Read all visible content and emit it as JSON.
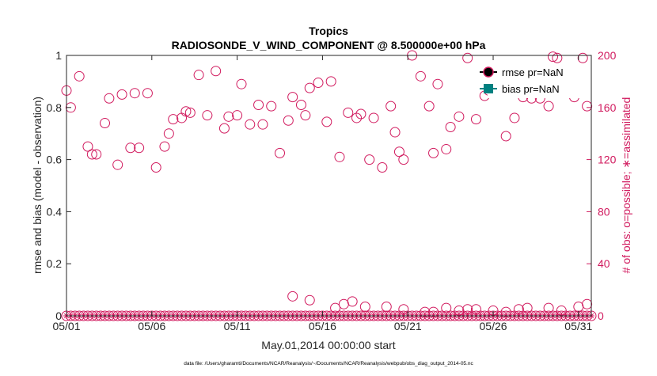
{
  "chart_data": {
    "type": "scatter",
    "title_line1": "Tropics",
    "title_line2": "RADIOSONDE_V_WIND_COMPONENT @ 8.500000e+00 hPa",
    "xlabel": "May.01,2014 00:00:00 start",
    "ylabel_left": "rmse and bias (model - observation)",
    "ylabel_right": "# of obs: o=possible; ∗=assimilated",
    "footnote": "data file: /Users/gharamti/Documents/NCAR/Reanalysis/~/Documents/NCAR/Reanalysis/webpub/obs_diag_output_2014-05.nc",
    "xlim": [
      1,
      31.75
    ],
    "ylim_left": [
      0,
      1
    ],
    "ylim_right": [
      0,
      200
    ],
    "x_ticks": [
      1,
      6,
      11,
      16,
      21,
      26,
      31
    ],
    "x_tick_labels": [
      "05/01",
      "05/06",
      "05/11",
      "05/16",
      "05/21",
      "05/26",
      "05/31"
    ],
    "y_left_ticks": [
      0,
      0.2,
      0.4,
      0.6,
      0.8,
      1
    ],
    "y_left_tick_labels": [
      "0",
      "0.2",
      "0.4",
      "0.6",
      "0.8",
      "1"
    ],
    "y_right_ticks": [
      0,
      40,
      80,
      120,
      160,
      200
    ],
    "y_right_tick_labels": [
      "0",
      "40",
      "80",
      "120",
      "160",
      "200"
    ],
    "legend": {
      "position": "top-right",
      "entries": [
        {
          "label": "rmse pr=NaN",
          "color": "#000000"
        },
        {
          "label": "bias pr=NaN",
          "color": "#008080"
        }
      ]
    },
    "colors": {
      "obs": "#d11a5e",
      "rmse": "#000000",
      "bias": "#008080",
      "axes": "#262626"
    },
    "series": [
      {
        "name": "obs possible (high)",
        "marker": "open-circle",
        "x": [
          1.0,
          1.25,
          1.75,
          2.25,
          2.5,
          2.75,
          3.25,
          3.5,
          4.0,
          4.25,
          4.75,
          5.0,
          5.25,
          5.75,
          6.25,
          6.75,
          7.0,
          7.25,
          7.75,
          8.0,
          8.25,
          8.75,
          9.25,
          9.75,
          10.25,
          10.5,
          11.0,
          11.25,
          11.75,
          12.25,
          12.5,
          13.0,
          13.5,
          14.0,
          14.25,
          14.75,
          15.0,
          15.25,
          15.75,
          16.25,
          16.5,
          17.0,
          17.5,
          18.0,
          18.25,
          18.75,
          19.0,
          19.5,
          20.0,
          20.25,
          20.5,
          20.75,
          21.25,
          21.75,
          22.25,
          22.5,
          22.75,
          23.25,
          23.5,
          24.0,
          24.5,
          25.0,
          25.5,
          25.75,
          26.25,
          26.75,
          27.0,
          27.25,
          27.75,
          28.0,
          28.25,
          28.75,
          29.25,
          29.5,
          29.75,
          30.0,
          30.25,
          30.75,
          31.0,
          31.25,
          31.5
        ]
      },
      {
        "name": "obs possible (high) values",
        "y": [
          173,
          160,
          184,
          130,
          124,
          124,
          148,
          167,
          116,
          170,
          129,
          171,
          129,
          171,
          114,
          130,
          140,
          151,
          152,
          157,
          156,
          185,
          154,
          188,
          144,
          153,
          154,
          178,
          147,
          162,
          147,
          161,
          125,
          150,
          168,
          162,
          154,
          175,
          179,
          149,
          180,
          122,
          156,
          152,
          155,
          120,
          152,
          114,
          161,
          141,
          126,
          120,
          200,
          184,
          161,
          125,
          178,
          128,
          145,
          153,
          198,
          151,
          169,
          173,
          172,
          138,
          174,
          152,
          168,
          173,
          167,
          167,
          161,
          199,
          198,
          187,
          185,
          168,
          189,
          198,
          161
        ]
      },
      {
        "name": "obs low possible",
        "marker": "open-circle",
        "x": [
          14.25,
          15.25,
          16.75,
          17.25,
          17.75,
          18.5,
          19.75,
          20.75,
          22.0,
          22.5,
          23.25,
          24.0,
          24.5,
          25.0,
          26.0,
          26.75,
          27.5,
          28.0,
          29.25,
          30.0,
          31.0,
          31.5
        ],
        "y": [
          15,
          12,
          6,
          9,
          11,
          7,
          7,
          5,
          3,
          3,
          6,
          4,
          5,
          5,
          4,
          3,
          5,
          6,
          6,
          4,
          7,
          9
        ]
      },
      {
        "name": "obs near zero",
        "marker": "open-circle",
        "x_start": 1.0,
        "x_step": 0.25,
        "count": 124,
        "value": 0
      },
      {
        "name": "obs assimilated",
        "marker": "asterisk",
        "x_start": 1.0,
        "x_step": 0.25,
        "count": 124,
        "value": 0
      }
    ]
  }
}
